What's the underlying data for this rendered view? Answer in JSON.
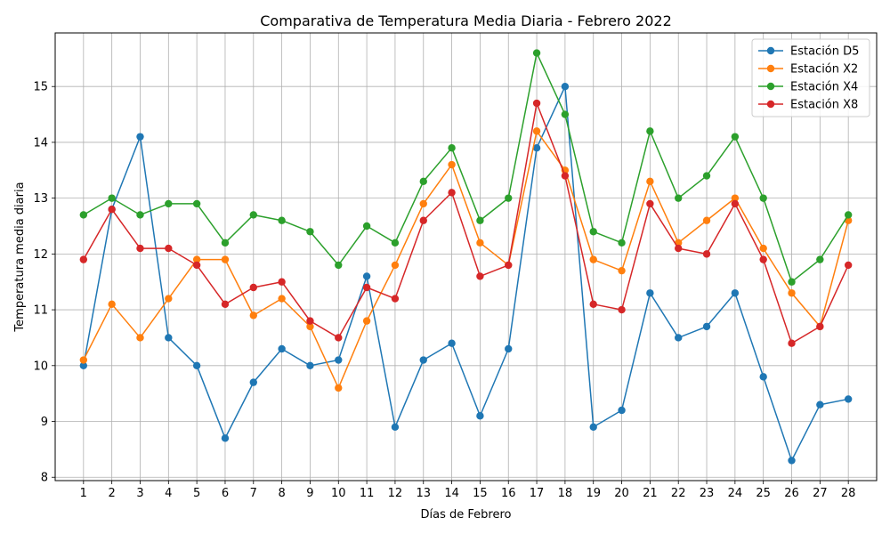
{
  "chart_data": {
    "type": "line",
    "title": "Comparativa de Temperatura Media Diaria - Febrero 2022",
    "xlabel": "Días de Febrero",
    "ylabel": "Temperatura media diaria",
    "x": [
      1,
      2,
      3,
      4,
      5,
      6,
      7,
      8,
      9,
      10,
      11,
      12,
      13,
      14,
      15,
      16,
      17,
      18,
      19,
      20,
      21,
      22,
      23,
      24,
      25,
      26,
      27,
      28
    ],
    "xlim": [
      0,
      29
    ],
    "ylim": [
      7.94,
      15.96
    ],
    "yticks": [
      8,
      9,
      10,
      11,
      12,
      13,
      14,
      15
    ],
    "grid": true,
    "legend_position": "top-right",
    "series": [
      {
        "name": "Estación D5",
        "color": "#1f77b4",
        "values": [
          10.0,
          12.8,
          14.1,
          10.5,
          10.0,
          8.7,
          9.7,
          10.3,
          10.0,
          10.1,
          11.6,
          8.9,
          10.1,
          10.4,
          9.1,
          10.3,
          13.9,
          15.0,
          8.9,
          9.2,
          11.3,
          10.5,
          10.7,
          11.3,
          9.8,
          8.3,
          9.3,
          9.4
        ]
      },
      {
        "name": "Estación X2",
        "color": "#ff7f0e",
        "values": [
          10.1,
          11.1,
          10.5,
          11.2,
          11.9,
          11.9,
          10.9,
          11.2,
          10.7,
          9.6,
          10.8,
          11.8,
          12.9,
          13.6,
          12.2,
          11.8,
          14.2,
          13.5,
          11.9,
          11.7,
          13.3,
          12.2,
          12.6,
          13.0,
          12.1,
          11.3,
          10.7,
          12.6
        ]
      },
      {
        "name": "Estación X4",
        "color": "#2ca02c",
        "values": [
          12.7,
          13.0,
          12.7,
          12.9,
          12.9,
          12.2,
          12.7,
          12.6,
          12.4,
          11.8,
          12.5,
          12.2,
          13.3,
          13.9,
          12.6,
          13.0,
          15.6,
          14.5,
          12.4,
          12.2,
          14.2,
          13.0,
          13.4,
          14.1,
          13.0,
          11.5,
          11.9,
          12.7
        ]
      },
      {
        "name": "Estación X8",
        "color": "#d62728",
        "values": [
          11.9,
          12.8,
          12.1,
          12.1,
          11.8,
          11.1,
          11.4,
          11.5,
          10.8,
          10.5,
          11.4,
          11.2,
          12.6,
          13.1,
          11.6,
          11.8,
          14.7,
          13.4,
          11.1,
          11.0,
          12.9,
          12.1,
          12.0,
          12.9,
          11.9,
          10.4,
          10.7,
          11.8
        ]
      }
    ]
  }
}
